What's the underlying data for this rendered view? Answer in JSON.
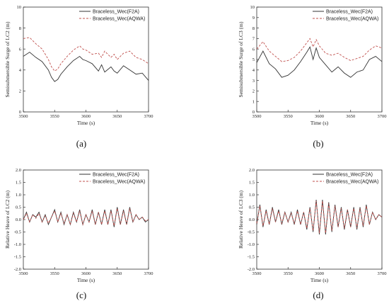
{
  "chart_data": [
    {
      "type": "line",
      "caption": "(a)",
      "xlabel": "Time (s)",
      "ylabel": "Semisubmersible Surge of LC2 (m)",
      "xlim": [
        3500,
        3700
      ],
      "ylim": [
        0,
        10
      ],
      "xticks": [
        3500,
        3550,
        3600,
        3650,
        3700
      ],
      "yticks": [
        0,
        2,
        4,
        6,
        8,
        10
      ],
      "legend_position": "top-right",
      "series": [
        {
          "name": "Braceless_Wec(F2A)",
          "color": "#333333",
          "dash": "solid",
          "x": [
            3500,
            3510,
            3520,
            3530,
            3540,
            3545,
            3550,
            3555,
            3560,
            3570,
            3580,
            3590,
            3595,
            3600,
            3610,
            3620,
            3625,
            3630,
            3640,
            3645,
            3650,
            3660,
            3670,
            3680,
            3690,
            3700
          ],
          "y": [
            5.3,
            5.7,
            5.2,
            4.8,
            4.0,
            3.3,
            2.9,
            3.1,
            3.6,
            4.3,
            4.9,
            5.3,
            5.0,
            4.9,
            4.6,
            3.9,
            4.5,
            3.8,
            4.3,
            3.9,
            3.7,
            4.4,
            4.0,
            3.6,
            3.7,
            3.0
          ]
        },
        {
          "name": "Braceless_Wec(AQWA)",
          "color": "#c0504d",
          "dash": "dashed",
          "x": [
            3500,
            3510,
            3520,
            3530,
            3540,
            3545,
            3550,
            3555,
            3560,
            3570,
            3580,
            3590,
            3595,
            3600,
            3610,
            3620,
            3625,
            3630,
            3640,
            3645,
            3650,
            3660,
            3670,
            3680,
            3690,
            3700
          ],
          "y": [
            7.0,
            7.1,
            6.5,
            6.0,
            5.0,
            4.3,
            3.9,
            4.1,
            4.6,
            5.3,
            5.9,
            6.3,
            6.0,
            5.9,
            5.5,
            5.6,
            5.2,
            5.8,
            5.2,
            5.5,
            5.0,
            5.6,
            5.8,
            5.2,
            5.0,
            4.6
          ]
        }
      ]
    },
    {
      "type": "line",
      "caption": "(b)",
      "xlabel": "Time (s)",
      "ylabel": "Semisubmersible Surge of LC3 (m)",
      "xlim": [
        3500,
        3700
      ],
      "ylim": [
        0,
        10
      ],
      "xticks": [
        3500,
        3550,
        3600,
        3650,
        3700
      ],
      "yticks": [
        0,
        1,
        2,
        3,
        4,
        5,
        6,
        7,
        8,
        9,
        10
      ],
      "legend_position": "top-right",
      "series": [
        {
          "name": "Braceless_Wec(F2A)",
          "color": "#333333",
          "dash": "solid",
          "x": [
            3500,
            3510,
            3520,
            3530,
            3540,
            3550,
            3560,
            3570,
            3580,
            3585,
            3590,
            3595,
            3600,
            3610,
            3620,
            3630,
            3640,
            3650,
            3660,
            3670,
            3680,
            3690,
            3700
          ],
          "y": [
            4.7,
            5.8,
            4.6,
            4.1,
            3.3,
            3.5,
            4.0,
            4.8,
            5.7,
            6.2,
            5.0,
            6.1,
            5.2,
            4.5,
            3.8,
            4.3,
            3.7,
            3.3,
            3.8,
            4.0,
            5.0,
            5.3,
            4.8
          ]
        },
        {
          "name": "Braceless_Wec(AQWA)",
          "color": "#c0504d",
          "dash": "dashed",
          "x": [
            3500,
            3510,
            3520,
            3530,
            3540,
            3550,
            3560,
            3570,
            3580,
            3585,
            3590,
            3595,
            3600,
            3610,
            3620,
            3630,
            3640,
            3650,
            3660,
            3670,
            3680,
            3690,
            3700
          ],
          "y": [
            6.0,
            6.7,
            5.8,
            5.3,
            4.8,
            4.9,
            5.2,
            5.8,
            6.6,
            7.0,
            6.2,
            6.9,
            6.3,
            5.6,
            5.4,
            5.6,
            5.2,
            4.9,
            5.1,
            5.3,
            5.9,
            6.3,
            6.1
          ]
        }
      ]
    },
    {
      "type": "line",
      "caption": "(c)",
      "xlabel": "Time (s)",
      "ylabel": "Relative Heave of LC2 (m)",
      "xlim": [
        3500,
        3700
      ],
      "ylim": [
        -2.0,
        2.0
      ],
      "xticks": [
        3500,
        3550,
        3600,
        3650,
        3700
      ],
      "yticks": [
        -2.0,
        -1.5,
        -1.0,
        -0.5,
        0.0,
        0.5,
        1.0,
        1.5,
        2.0
      ],
      "legend_position": "top-right",
      "series": [
        {
          "name": "Braceless_Wec(F2A)",
          "color": "#333333",
          "dash": "solid",
          "x": [
            3500,
            3505,
            3510,
            3515,
            3520,
            3525,
            3530,
            3535,
            3540,
            3545,
            3550,
            3555,
            3560,
            3565,
            3570,
            3575,
            3580,
            3585,
            3590,
            3595,
            3600,
            3605,
            3610,
            3615,
            3620,
            3625,
            3630,
            3635,
            3640,
            3645,
            3650,
            3655,
            3660,
            3665,
            3670,
            3675,
            3680,
            3685,
            3690,
            3695,
            3700
          ],
          "y": [
            0.0,
            0.3,
            -0.1,
            0.2,
            0.1,
            0.3,
            -0.1,
            0.2,
            -0.2,
            0.1,
            0.4,
            -0.1,
            0.3,
            -0.2,
            0.2,
            -0.2,
            0.3,
            -0.1,
            0.4,
            -0.2,
            0.2,
            -0.1,
            0.4,
            -0.2,
            0.3,
            -0.2,
            0.4,
            -0.2,
            0.4,
            -0.3,
            0.5,
            -0.2,
            0.4,
            -0.2,
            0.5,
            -0.1,
            0.2,
            0.0,
            0.1,
            -0.1,
            0.0
          ]
        },
        {
          "name": "Braceless_Wec(AQWA)",
          "color": "#c0504d",
          "dash": "dashed",
          "x": [
            3500,
            3505,
            3510,
            3515,
            3520,
            3525,
            3530,
            3535,
            3540,
            3545,
            3550,
            3555,
            3560,
            3565,
            3570,
            3575,
            3580,
            3585,
            3590,
            3595,
            3600,
            3605,
            3610,
            3615,
            3620,
            3625,
            3630,
            3635,
            3640,
            3645,
            3650,
            3655,
            3660,
            3665,
            3670,
            3675,
            3680,
            3685,
            3690,
            3695,
            3700
          ],
          "y": [
            0.0,
            0.25,
            -0.1,
            0.2,
            0.05,
            0.25,
            -0.1,
            0.15,
            -0.15,
            0.1,
            0.35,
            -0.1,
            0.25,
            -0.15,
            0.2,
            -0.2,
            0.25,
            -0.1,
            0.35,
            -0.2,
            0.2,
            -0.1,
            0.35,
            -0.2,
            0.3,
            -0.2,
            0.35,
            -0.2,
            0.35,
            -0.25,
            0.45,
            -0.2,
            0.35,
            -0.2,
            0.45,
            -0.1,
            0.2,
            0.0,
            0.1,
            -0.05,
            0.0
          ]
        }
      ]
    },
    {
      "type": "line",
      "caption": "(d)",
      "xlabel": "Time (s)",
      "ylabel": "Relative Heave of LC3 (m)",
      "xlim": [
        3500,
        3700
      ],
      "ylim": [
        -2.0,
        2.0
      ],
      "xticks": [
        3500,
        3550,
        3600,
        3650,
        3700
      ],
      "yticks": [
        -2.0,
        -1.5,
        -1.0,
        -0.5,
        0.0,
        0.5,
        1.0,
        1.5,
        2.0
      ],
      "legend_position": "top-right",
      "series": [
        {
          "name": "Braceless_Wec(F2A)",
          "color": "#333333",
          "dash": "solid",
          "x": [
            3500,
            3505,
            3510,
            3515,
            3520,
            3525,
            3530,
            3535,
            3540,
            3545,
            3550,
            3555,
            3560,
            3565,
            3570,
            3575,
            3580,
            3585,
            3590,
            3595,
            3600,
            3605,
            3610,
            3615,
            3620,
            3625,
            3630,
            3635,
            3640,
            3645,
            3650,
            3655,
            3660,
            3665,
            3670,
            3675,
            3680,
            3685,
            3690,
            3695,
            3700
          ],
          "y": [
            -0.2,
            0.6,
            -0.3,
            0.4,
            -0.2,
            0.5,
            -0.1,
            0.4,
            -0.2,
            0.3,
            -0.1,
            0.3,
            -0.2,
            0.4,
            -0.2,
            0.3,
            -0.4,
            0.5,
            -0.5,
            0.8,
            -0.6,
            0.8,
            -0.6,
            0.7,
            -0.5,
            0.6,
            -0.3,
            0.5,
            -0.4,
            0.4,
            -0.3,
            0.5,
            -0.4,
            0.5,
            -0.3,
            0.6,
            -0.2,
            0.3,
            0.0,
            0.2,
            0.1
          ]
        },
        {
          "name": "Braceless_Wec(AQWA)",
          "color": "#c0504d",
          "dash": "dashed",
          "x": [
            3500,
            3505,
            3510,
            3515,
            3520,
            3525,
            3530,
            3535,
            3540,
            3545,
            3550,
            3555,
            3560,
            3565,
            3570,
            3575,
            3580,
            3585,
            3590,
            3595,
            3600,
            3605,
            3610,
            3615,
            3620,
            3625,
            3630,
            3635,
            3640,
            3645,
            3650,
            3655,
            3660,
            3665,
            3670,
            3675,
            3680,
            3685,
            3690,
            3695,
            3700
          ],
          "y": [
            -0.15,
            0.55,
            -0.25,
            0.35,
            -0.2,
            0.45,
            -0.1,
            0.35,
            -0.15,
            0.3,
            -0.1,
            0.25,
            -0.15,
            0.35,
            -0.2,
            0.3,
            -0.35,
            0.45,
            -0.45,
            0.75,
            -0.55,
            0.75,
            -0.55,
            0.65,
            -0.45,
            0.55,
            -0.3,
            0.45,
            -0.35,
            0.4,
            -0.3,
            0.45,
            -0.35,
            0.45,
            -0.25,
            0.55,
            -0.2,
            0.3,
            0.0,
            0.2,
            0.1
          ]
        }
      ]
    }
  ]
}
